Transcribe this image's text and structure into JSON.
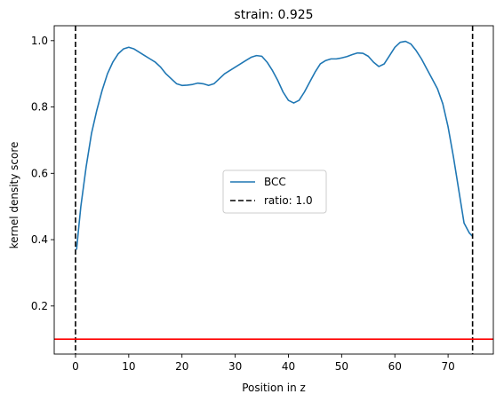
{
  "chart_data": {
    "type": "line",
    "title": "strain: 0.925",
    "xlabel": "Position in z",
    "ylabel": "kernel density score",
    "xlim": [
      -4,
      78.5
    ],
    "ylim": [
      0.055,
      1.045
    ],
    "xticks": [
      0,
      10,
      20,
      30,
      40,
      50,
      60,
      70
    ],
    "yticks": [
      0.2,
      0.4,
      0.6,
      0.8,
      1.0
    ],
    "xtick_labels": [
      "0",
      "10",
      "20",
      "30",
      "40",
      "50",
      "60",
      "70"
    ],
    "ytick_labels": [
      "0.2",
      "0.4",
      "0.6",
      "0.8",
      "1.0"
    ],
    "grid": false,
    "legend_position": "center",
    "series": [
      {
        "name": "BCC",
        "color": "#1f77b4",
        "style": "solid",
        "x": [
          0.2,
          0.5,
          1,
          2,
          3,
          4,
          5,
          6,
          7,
          8,
          9,
          10,
          11,
          12,
          13,
          14,
          15,
          16,
          17,
          18,
          19,
          20,
          21,
          22,
          23,
          24,
          25,
          26,
          27,
          28,
          29,
          30,
          31,
          32,
          33,
          34,
          35,
          36,
          37,
          38,
          39,
          40,
          41,
          42,
          43,
          44,
          45,
          46,
          47,
          48,
          49,
          50,
          51,
          52,
          53,
          54,
          55,
          56,
          57,
          58,
          59,
          60,
          61,
          62,
          63,
          64,
          65,
          66,
          67,
          68,
          69,
          70,
          71,
          72,
          73,
          74,
          74.6
        ],
        "y": [
          0.37,
          0.42,
          0.5,
          0.62,
          0.72,
          0.79,
          0.85,
          0.9,
          0.935,
          0.96,
          0.975,
          0.98,
          0.975,
          0.965,
          0.955,
          0.945,
          0.935,
          0.92,
          0.9,
          0.885,
          0.87,
          0.865,
          0.866,
          0.868,
          0.872,
          0.87,
          0.865,
          0.87,
          0.885,
          0.9,
          0.91,
          0.92,
          0.93,
          0.94,
          0.95,
          0.955,
          0.953,
          0.935,
          0.91,
          0.88,
          0.845,
          0.82,
          0.812,
          0.82,
          0.845,
          0.875,
          0.905,
          0.93,
          0.94,
          0.945,
          0.945,
          0.948,
          0.952,
          0.958,
          0.963,
          0.962,
          0.953,
          0.935,
          0.922,
          0.93,
          0.955,
          0.98,
          0.995,
          0.998,
          0.99,
          0.97,
          0.945,
          0.915,
          0.885,
          0.855,
          0.81,
          0.74,
          0.65,
          0.55,
          0.45,
          0.42,
          0.41
        ]
      },
      {
        "name": "ratio: 1.0",
        "color": "#000000",
        "style": "dashed",
        "vlines": [
          0,
          74.6
        ]
      },
      {
        "color": "#ff0000",
        "style": "solid",
        "hline": 0.1
      }
    ]
  }
}
